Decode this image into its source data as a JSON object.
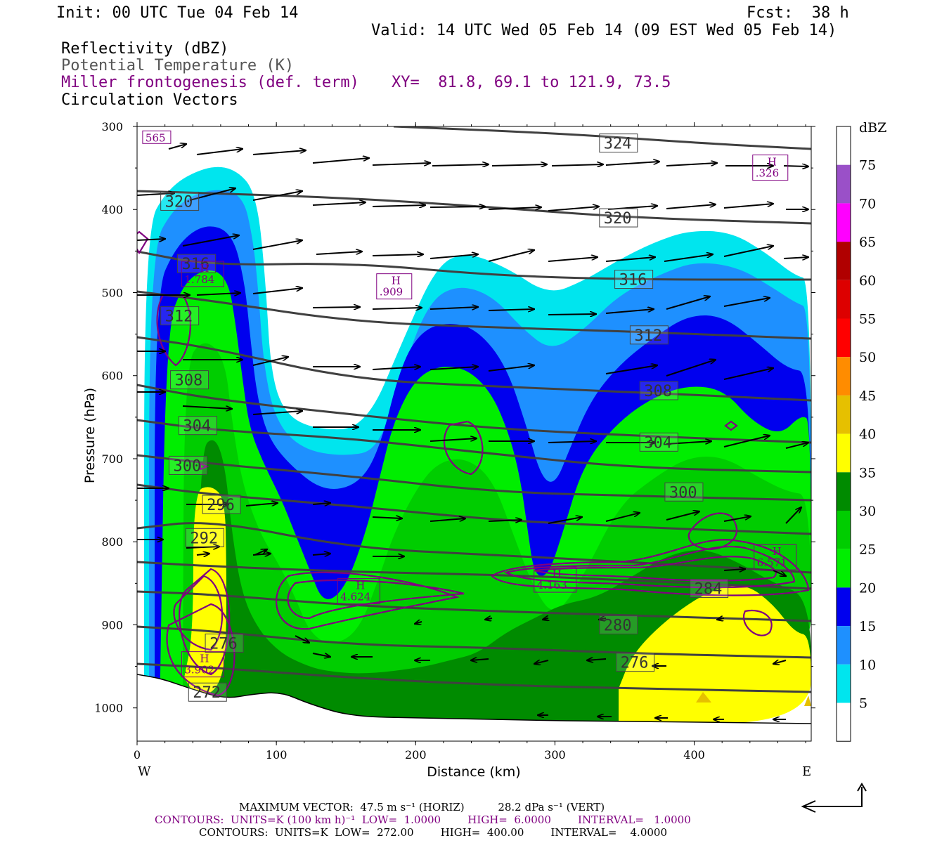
{
  "header": {
    "init": "Init: 00 UTC Tue 04 Feb 14",
    "fcst": "Fcst:  38 h",
    "valid": "Valid: 14 UTC Wed 05 Feb 14 (09 EST Wed 05 Feb 14)",
    "field1": "Reflectivity (dBZ)",
    "field2": "Potential Temperature (K)",
    "field3": "Miller frontogenesis (def. term)",
    "xy": "XY=  81.8, 69.1 to 121.9, 73.5",
    "field4": "Circulation Vectors"
  },
  "footer": {
    "max_vector": "MAXIMUM VECTOR:  47.5 m s⁻¹ (HORIZ)          28.2 dPa s⁻¹ (VERT)",
    "contours_fronto": "CONTOURS:  UNITS=K (100 km h)⁻¹  LOW=  1.0000        HIGH=  6.0000        INTERVAL=   1.0000",
    "contours_theta": "CONTOURS:  UNITS=K  LOW=  272.00        HIGH=  400.00        INTERVAL=    4.0000"
  },
  "colors": {
    "theta": "#404040",
    "fronto": "#800080",
    "vector": "#000000"
  },
  "chart_data": {
    "type": "heatmap",
    "xlabel": "Distance (km)",
    "ylabel": "Pressure (hPa)",
    "x_range": [
      0,
      484
    ],
    "y_range": [
      300,
      1040
    ],
    "x_ticks": [
      0,
      100,
      200,
      300,
      400
    ],
    "y_ticks": [
      300,
      400,
      500,
      600,
      700,
      800,
      900,
      1000
    ],
    "left_label": "W",
    "right_label": "E",
    "colorbar": {
      "title": "dBZ",
      "levels": [
        5,
        10,
        15,
        20,
        25,
        30,
        35,
        40,
        45,
        50,
        55,
        60,
        65,
        70,
        75
      ],
      "colors": [
        "#ffffff",
        "#00e5ee",
        "#1e90ff",
        "#0000ee",
        "#00ee00",
        "#00cd00",
        "#008b00",
        "#ffff00",
        "#e6c000",
        "#ff8c00",
        "#ff0000",
        "#dd0000",
        "#b00000",
        "#ff00ff",
        "#9a50c8",
        "#ffffff"
      ]
    },
    "theta_labels": [
      {
        "value": "324",
        "x": 333,
        "p": 320
      },
      {
        "value": "320",
        "x": 18,
        "p": 390
      },
      {
        "value": "320",
        "x": 333,
        "p": 410
      },
      {
        "value": "316",
        "x": 30,
        "p": 465
      },
      {
        "value": "316",
        "x": 344,
        "p": 484
      },
      {
        "value": "312",
        "x": 18,
        "p": 528
      },
      {
        "value": "312",
        "x": 355,
        "p": 551
      },
      {
        "value": "308",
        "x": 25,
        "p": 605
      },
      {
        "value": "308",
        "x": 362,
        "p": 618
      },
      {
        "value": "304",
        "x": 31,
        "p": 660
      },
      {
        "value": "304",
        "x": 362,
        "p": 680
      },
      {
        "value": "300",
        "x": 24,
        "p": 708
      },
      {
        "value": "300",
        "x": 380,
        "p": 740
      },
      {
        "value": "296",
        "x": 48,
        "p": 755
      },
      {
        "value": "292",
        "x": 36,
        "p": 795
      },
      {
        "value": "284",
        "x": 398,
        "p": 856
      },
      {
        "value": "280",
        "x": 333,
        "p": 900
      },
      {
        "value": "276",
        "x": 50,
        "p": 922
      },
      {
        "value": "276",
        "x": 345,
        "p": 945
      },
      {
        "value": "272",
        "x": 38,
        "p": 981
      }
    ],
    "fronto_maxima": [
      {
        "label": "H",
        "value": ".326",
        "x": 443,
        "p": 347
      },
      {
        "label": "H",
        "value": "1.784",
        "x": 33,
        "p": 475
      },
      {
        "label": "H",
        "value": ".909",
        "x": 173,
        "p": 490
      },
      {
        "label": "H",
        "value": "4.163",
        "x": 286,
        "p": 843
      },
      {
        "label": "H",
        "value": "4.624",
        "x": 145,
        "p": 857
      },
      {
        "label": "H",
        "value": "6.571",
        "x": 444,
        "p": 816
      },
      {
        "label": "H",
        "value": "3.902",
        "x": 33,
        "p": 945
      },
      {
        "label": "",
        "value": "565",
        "x": 5,
        "p": 318
      }
    ]
  }
}
